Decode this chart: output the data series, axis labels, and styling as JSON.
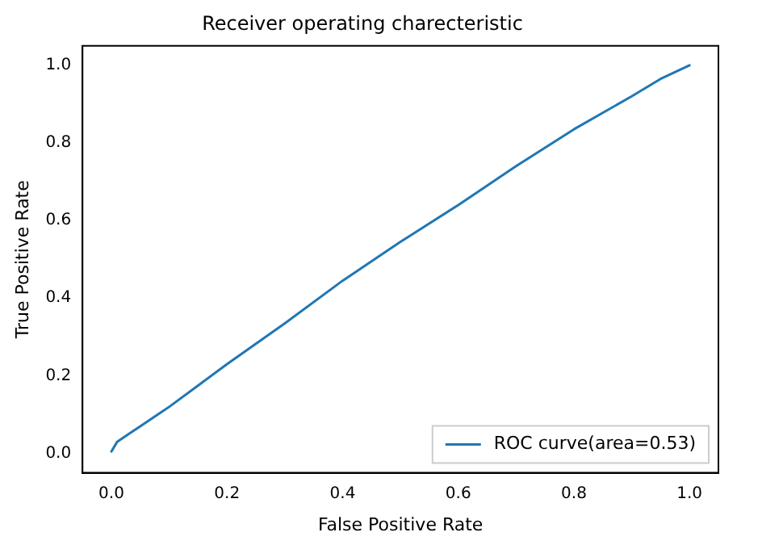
{
  "chart_data": {
    "type": "line",
    "title": "Receiver operating charecteristic",
    "xlabel": "False Positive Rate",
    "ylabel": "True Positive Rate",
    "x": [
      0,
      0.01,
      0.03,
      0.05,
      0.1,
      0.15,
      0.2,
      0.3,
      0.4,
      0.5,
      0.6,
      0.7,
      0.8,
      0.9,
      0.95,
      1
    ],
    "series": [
      {
        "name": "ROC curve(area=0.53)",
        "color": "#1f77b4",
        "values": [
          0.005,
          0.03,
          0.05,
          0.07,
          0.12,
          0.175,
          0.23,
          0.335,
          0.445,
          0.545,
          0.64,
          0.74,
          0.835,
          0.92,
          0.965,
          1
        ]
      }
    ],
    "xlim": [
      -0.05,
      1.05
    ],
    "ylim": [
      -0.05,
      1.05
    ],
    "xticks": [
      {
        "value": 0,
        "label": "0.0"
      },
      {
        "value": 0.2,
        "label": "0.2"
      },
      {
        "value": 0.4,
        "label": "0.4"
      },
      {
        "value": 0.6,
        "label": "0.6"
      },
      {
        "value": 0.8,
        "label": "0.8"
      },
      {
        "value": 1,
        "label": "1.0"
      }
    ],
    "yticks": [
      {
        "value": 0,
        "label": "0.0"
      },
      {
        "value": 0.2,
        "label": "0.2"
      },
      {
        "value": 0.4,
        "label": "0.4"
      },
      {
        "value": 0.6,
        "label": "0.6"
      },
      {
        "value": 0.8,
        "label": "0.8"
      },
      {
        "value": 1,
        "label": "1.0"
      }
    ],
    "grid": false,
    "legend": "bottom right",
    "marker": "none",
    "line_style": "solid"
  }
}
